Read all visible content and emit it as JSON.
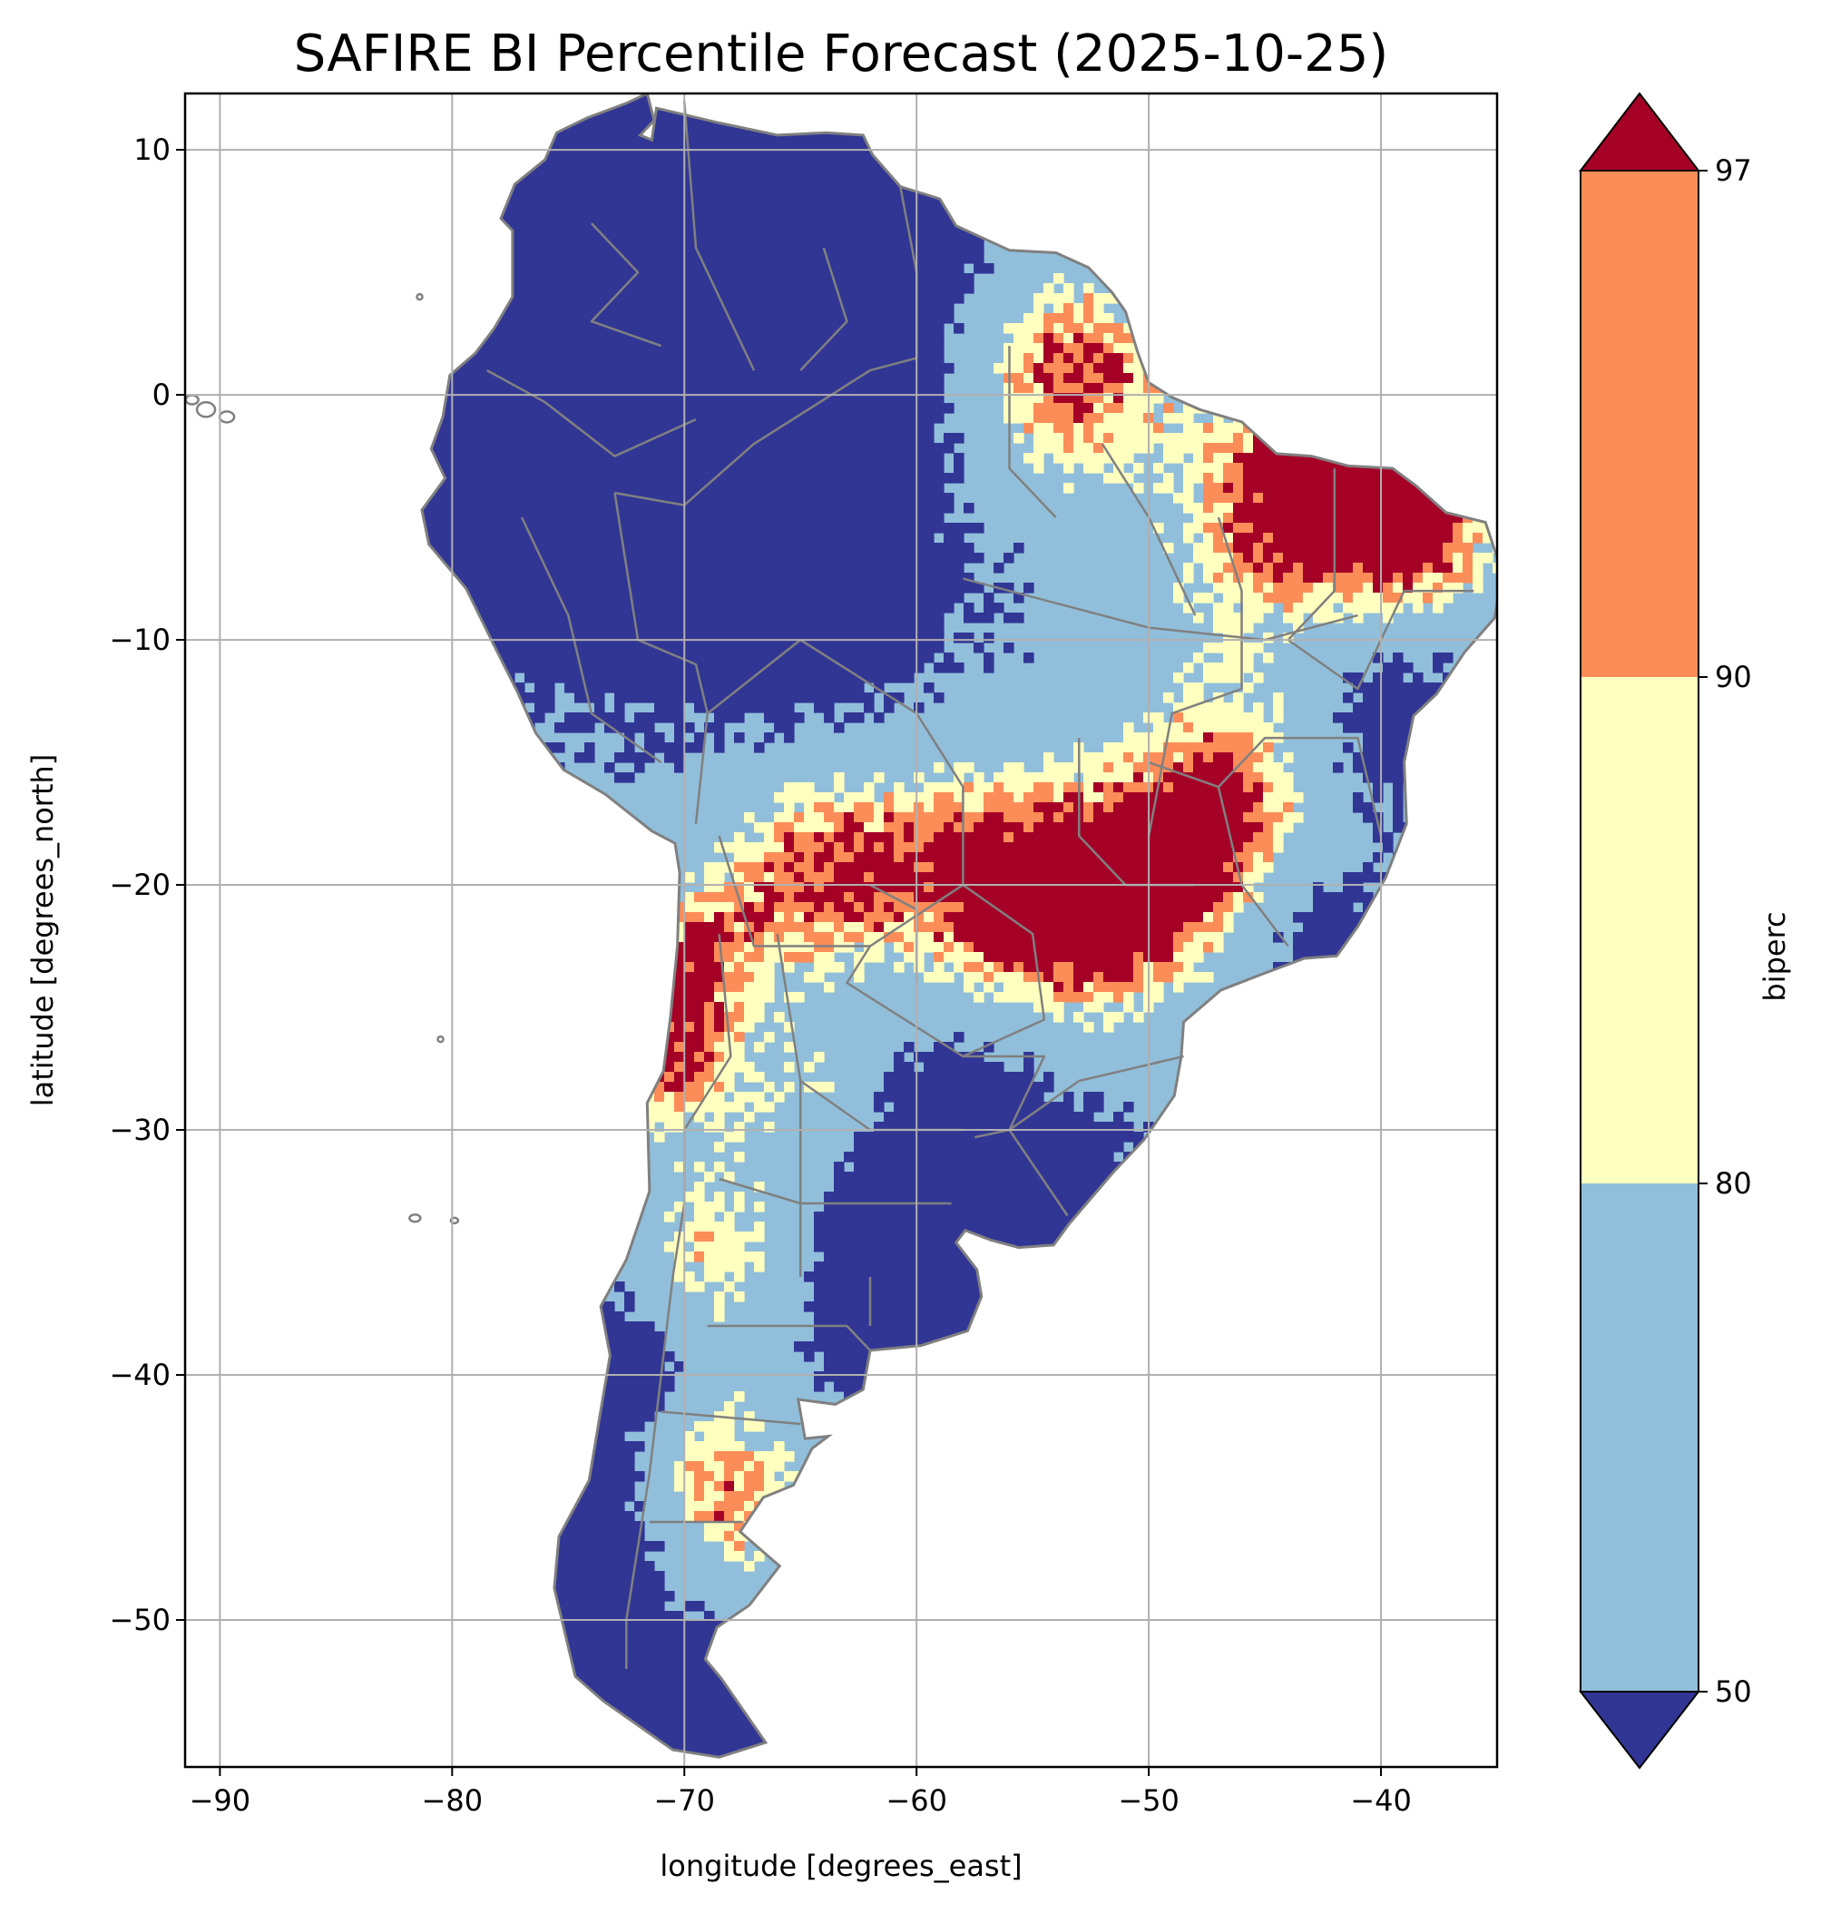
{
  "title": "SAFIRE BI Percentile Forecast (2025-10-25)",
  "map": {
    "xlabel": "longitude [degrees_east]",
    "ylabel": "latitude [degrees_north]",
    "xlim": [
      -91.5,
      -35
    ],
    "ylim": [
      -56,
      12.3
    ],
    "xticks": [
      -90,
      -80,
      -70,
      -60,
      -50,
      -40
    ],
    "yticks": [
      10,
      0,
      -10,
      -20,
      -30,
      -40,
      -50
    ],
    "xtick_labels": [
      "−90",
      "−80",
      "−70",
      "−60",
      "−50",
      "−40"
    ],
    "ytick_labels": [
      "10",
      "0",
      "−10",
      "−20",
      "−30",
      "−40",
      "−50"
    ],
    "grid": true,
    "border_color": "#808080"
  },
  "colorbar": {
    "label": "biperc",
    "ticks": [
      "97",
      "90",
      "80",
      "50"
    ],
    "bins": [
      {
        "range": "<50",
        "color": "#313695"
      },
      {
        "range": "50-80",
        "color": "#91bfdb"
      },
      {
        "range": "80-90",
        "color": "#ffffbf"
      },
      {
        "range": "90-97",
        "color": "#fc8d59"
      },
      {
        "range": ">97",
        "color": "#a50026"
      }
    ]
  },
  "chart_data": {
    "type": "heatmap",
    "variable": "biperc",
    "levels": [
      50,
      80,
      90,
      97
    ],
    "extend": "both",
    "regions": [
      {
        "class": ">97",
        "lon": -54,
        "lat": 1
      },
      {
        "class": ">97",
        "lon": -44,
        "lat": -5
      },
      {
        "class": ">97",
        "lon": -54,
        "lat": -21
      },
      {
        "class": "90-97",
        "lon": -50,
        "lat": -15
      },
      {
        "class": "50-80",
        "lon": -55,
        "lat": -8
      },
      {
        "class": "<50",
        "lon": -70,
        "lat": -2
      },
      {
        "class": "<50",
        "lon": -58,
        "lat": -32
      },
      {
        "class": "90-97",
        "lon": -69,
        "lat": -45
      },
      {
        "class": "<50",
        "lon": -72,
        "lat": -48
      }
    ]
  }
}
